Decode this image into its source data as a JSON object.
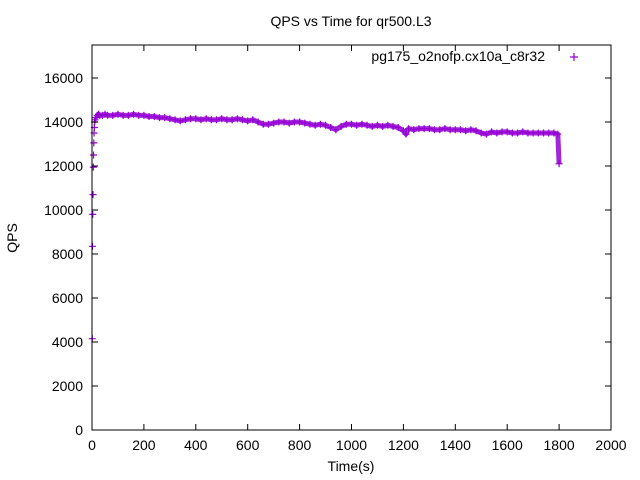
{
  "chart_data": {
    "type": "scatter",
    "title": "QPS vs Time for qr500.L3",
    "xlabel": "Time(s)",
    "ylabel": "QPS",
    "xlim": [
      0,
      2000
    ],
    "ylim": [
      0,
      17500
    ],
    "x_ticks": [
      0,
      200,
      400,
      600,
      800,
      1000,
      1200,
      1400,
      1600,
      1800,
      2000
    ],
    "y_ticks": [
      0,
      2000,
      4000,
      6000,
      8000,
      10000,
      12000,
      14000,
      16000
    ],
    "grid": false,
    "legend_position": "top-right",
    "marker": "+",
    "series": [
      {
        "name": "pg175_o2nofp.cx10a_c8r32",
        "color": "#9400d3",
        "x": [
          1,
          2,
          3,
          4,
          5,
          6,
          7,
          8,
          9,
          10,
          12,
          15,
          20,
          25,
          30,
          40,
          50,
          60,
          80,
          100,
          120,
          140,
          160,
          180,
          200,
          220,
          240,
          260,
          280,
          300,
          320,
          340,
          360,
          380,
          400,
          420,
          440,
          460,
          480,
          500,
          520,
          540,
          560,
          580,
          600,
          620,
          640,
          660,
          680,
          700,
          720,
          740,
          760,
          780,
          800,
          820,
          840,
          860,
          880,
          900,
          920,
          940,
          960,
          980,
          1000,
          1020,
          1040,
          1060,
          1080,
          1100,
          1120,
          1140,
          1160,
          1180,
          1200,
          1210,
          1220,
          1240,
          1260,
          1280,
          1300,
          1320,
          1340,
          1360,
          1380,
          1400,
          1420,
          1440,
          1460,
          1480,
          1500,
          1520,
          1540,
          1560,
          1580,
          1600,
          1620,
          1640,
          1660,
          1680,
          1700,
          1720,
          1740,
          1760,
          1780,
          1795,
          1800
        ],
        "y": [
          4150,
          8350,
          9800,
          10700,
          11950,
          12500,
          13050,
          13500,
          13750,
          14000,
          14100,
          14200,
          14300,
          14350,
          14300,
          14300,
          14350,
          14300,
          14300,
          14350,
          14300,
          14300,
          14350,
          14300,
          14300,
          14250,
          14250,
          14200,
          14200,
          14150,
          14100,
          14050,
          14100,
          14150,
          14150,
          14100,
          14150,
          14100,
          14100,
          14150,
          14100,
          14100,
          14150,
          14100,
          14050,
          14100,
          14000,
          13900,
          13900,
          13950,
          14000,
          14000,
          13950,
          14000,
          14000,
          13950,
          13900,
          13850,
          13900,
          13850,
          13750,
          13650,
          13800,
          13900,
          13900,
          13850,
          13900,
          13850,
          13800,
          13850,
          13800,
          13850,
          13800,
          13750,
          13600,
          13450,
          13700,
          13650,
          13700,
          13700,
          13700,
          13650,
          13650,
          13700,
          13650,
          13650,
          13650,
          13600,
          13650,
          13600,
          13500,
          13450,
          13550,
          13500,
          13550,
          13550,
          13500,
          13500,
          13550,
          13500,
          13500,
          13500,
          13500,
          13500,
          13500,
          13450,
          12100
        ]
      }
    ]
  }
}
